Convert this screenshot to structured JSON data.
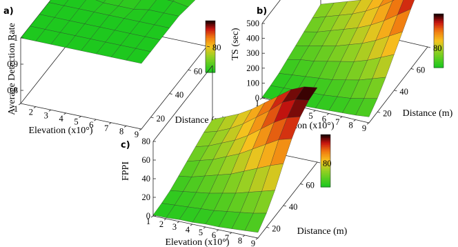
{
  "chart_data": [
    {
      "panel_label": "a)",
      "type": "surface",
      "x": [
        1,
        2,
        3,
        4,
        5,
        6,
        7,
        8,
        9
      ],
      "y": [
        10,
        20,
        30,
        40,
        50,
        60,
        70,
        80
      ],
      "xlabel": "Elevation (x10°)",
      "ylabel": "Distance (m)",
      "zlabel": "Average Detection Rate",
      "xticks": [
        "1",
        "2",
        "3",
        "4",
        "5",
        "6",
        "7",
        "8",
        "9"
      ],
      "yticks": [
        "20",
        "40",
        "60",
        "80"
      ],
      "zticks": [
        "0.8",
        "0.9",
        "1"
      ],
      "zlim": [
        0.75,
        1.0
      ],
      "values": [
        [
          1.0,
          1.0,
          1.0,
          1.0,
          1.0,
          1.0,
          1.0,
          1.0,
          1.0
        ],
        [
          1.0,
          1.0,
          1.0,
          1.0,
          1.0,
          1.0,
          1.0,
          1.0,
          1.0
        ],
        [
          1.0,
          1.0,
          1.0,
          1.0,
          1.0,
          1.0,
          1.0,
          1.0,
          1.0
        ],
        [
          1.0,
          1.0,
          1.0,
          1.0,
          1.0,
          1.0,
          1.0,
          1.0,
          1.0
        ],
        [
          1.0,
          1.0,
          1.0,
          0.99,
          0.99,
          0.99,
          1.0,
          1.0,
          1.0
        ],
        [
          1.0,
          1.0,
          1.0,
          0.99,
          0.99,
          0.99,
          1.0,
          1.0,
          0.99
        ],
        [
          1.0,
          1.0,
          0.99,
          0.99,
          0.99,
          0.99,
          0.99,
          0.99,
          0.98
        ],
        [
          0.99,
          0.99,
          0.99,
          0.99,
          0.99,
          0.99,
          0.99,
          0.98,
          0.95
        ]
      ],
      "colorbar": [
        "#1a0000",
        "#c81010",
        "#f07a10",
        "#f7c21e",
        "#9ad022",
        "#1ec81e"
      ]
    },
    {
      "panel_label": "b)",
      "type": "surface",
      "x": [
        1,
        2,
        3,
        4,
        5,
        6,
        7,
        8,
        9
      ],
      "y": [
        10,
        20,
        30,
        40,
        50,
        60,
        70,
        80
      ],
      "xlabel": "Elevation (x10°)",
      "ylabel": "Distance (m)",
      "zlabel": "TS (sec)",
      "xticks": [
        "1",
        "2",
        "3",
        "4",
        "5",
        "6",
        "7",
        "8",
        "9"
      ],
      "yticks": [
        "20",
        "40",
        "60",
        "80"
      ],
      "zticks": [
        "0",
        "100",
        "200",
        "300",
        "400",
        "500"
      ],
      "zlim": [
        0,
        500
      ],
      "values": [
        [
          5,
          5,
          10,
          10,
          15,
          20,
          25,
          30,
          40
        ],
        [
          10,
          15,
          20,
          25,
          30,
          40,
          50,
          70,
          90
        ],
        [
          20,
          30,
          40,
          50,
          60,
          80,
          100,
          130,
          160
        ],
        [
          40,
          60,
          70,
          90,
          110,
          130,
          160,
          200,
          240
        ],
        [
          60,
          80,
          100,
          120,
          150,
          180,
          220,
          270,
          320
        ],
        [
          80,
          100,
          130,
          160,
          190,
          230,
          280,
          340,
          400
        ],
        [
          100,
          130,
          160,
          190,
          230,
          280,
          340,
          410,
          470
        ],
        [
          120,
          150,
          180,
          210,
          250,
          300,
          360,
          430,
          500
        ]
      ],
      "colorbar": [
        "#1a0000",
        "#c81010",
        "#f07a10",
        "#f7c21e",
        "#9ad022",
        "#1ec81e"
      ]
    },
    {
      "panel_label": "c)",
      "type": "surface",
      "x": [
        1,
        2,
        3,
        4,
        5,
        6,
        7,
        8,
        9
      ],
      "y": [
        10,
        20,
        30,
        40,
        50,
        60,
        70,
        80
      ],
      "xlabel": "Elevation (x10°)",
      "ylabel": "Distance (m)",
      "zlabel": "FPPI",
      "xticks": [
        "1",
        "2",
        "3",
        "4",
        "5",
        "6",
        "7",
        "8",
        "9"
      ],
      "yticks": [
        "20",
        "40",
        "60",
        "80"
      ],
      "zticks": [
        "0",
        "20",
        "40",
        "60",
        "80"
      ],
      "zlim": [
        0,
        80
      ],
      "values": [
        [
          1,
          1,
          2,
          2,
          3,
          3,
          4,
          5,
          6
        ],
        [
          2,
          3,
          4,
          5,
          6,
          8,
          10,
          12,
          15
        ],
        [
          4,
          6,
          8,
          10,
          13,
          16,
          20,
          24,
          28
        ],
        [
          8,
          10,
          14,
          18,
          22,
          28,
          34,
          40,
          45
        ],
        [
          12,
          16,
          20,
          26,
          32,
          40,
          48,
          56,
          60
        ],
        [
          16,
          20,
          26,
          32,
          40,
          50,
          60,
          68,
          72
        ],
        [
          20,
          24,
          30,
          38,
          48,
          58,
          70,
          76,
          78
        ],
        [
          22,
          28,
          34,
          42,
          52,
          62,
          72,
          78,
          80
        ]
      ],
      "colorbar": [
        "#1a0000",
        "#c81010",
        "#f07a10",
        "#f7c21e",
        "#9ad022",
        "#1ec81e"
      ]
    }
  ]
}
